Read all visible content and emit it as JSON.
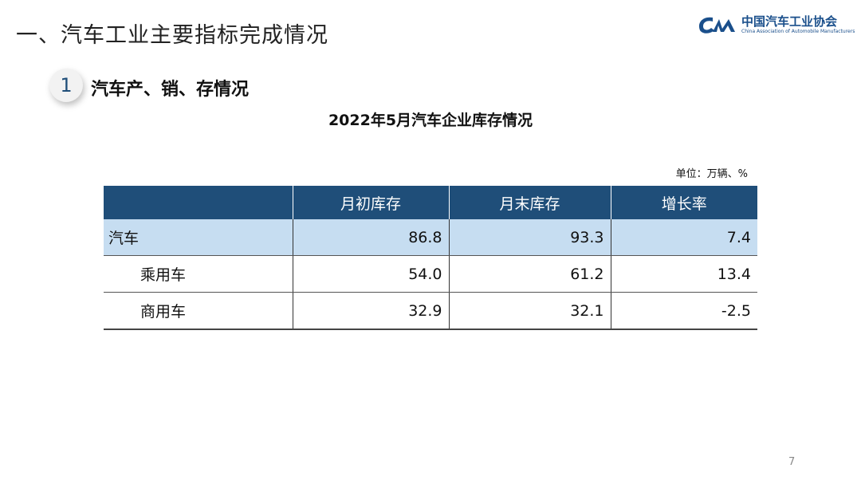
{
  "title": "一、汽车工业主要指标完成情况",
  "logo": {
    "name_cn": "中国汽车工业协会",
    "name_en": "China Association of Automobile Manufacturers"
  },
  "section": {
    "number": "1",
    "label": "汽车产、销、存情况"
  },
  "table_title": "2022年5月汽车企业库存情况",
  "unit": "单位：万辆、%",
  "table": {
    "headers": [
      "",
      "月初库存",
      "月末库存",
      "增长率"
    ],
    "rows": [
      {
        "name": "汽车",
        "values": [
          "86.8",
          "93.3",
          "7.4"
        ]
      },
      {
        "name": "乘用车",
        "values": [
          "54.0",
          "61.2",
          "13.4"
        ]
      },
      {
        "name": "商用车",
        "values": [
          "32.9",
          "32.1",
          "-2.5"
        ]
      }
    ]
  },
  "colors": {
    "header_bg": "#1f4e79",
    "highlight_row": "#c6ddf1"
  },
  "page_number": "7"
}
